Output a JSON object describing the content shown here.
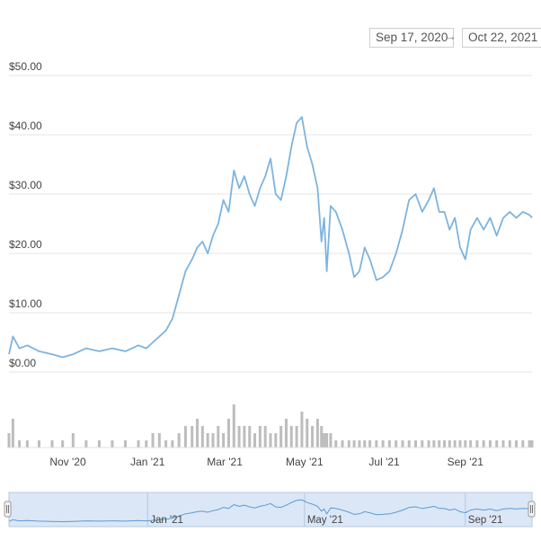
{
  "date_range": {
    "from": "Sep 17, 2020",
    "arrow": "→",
    "to": "Oct 22, 2021"
  },
  "colors": {
    "line": "#7cb4e0",
    "grid": "#e6e6e6",
    "volume": "#bdbdbd",
    "navigator_fill": "#dbe7f6",
    "navigator_line": "#5b9bd5"
  },
  "chart_data": {
    "type": "line",
    "title": "",
    "xlabel": "",
    "ylabel": "",
    "x_range": [
      "2020-09-17",
      "2021-10-22"
    ],
    "ylim": [
      0,
      50
    ],
    "y_ticks": [
      "$0.00",
      "$10.00",
      "$20.00",
      "$30.00",
      "$40.00",
      "$50.00"
    ],
    "y_tick_values": [
      0,
      10,
      20,
      30,
      40,
      50
    ],
    "x_ticks": [
      {
        "label": "Nov '20",
        "date": "2020-11-01"
      },
      {
        "label": "Jan '21",
        "date": "2021-01-01"
      },
      {
        "label": "Mar '21",
        "date": "2021-03-01"
      },
      {
        "label": "May '21",
        "date": "2021-05-01"
      },
      {
        "label": "Jul '21",
        "date": "2021-07-01"
      },
      {
        "label": "Sep '21",
        "date": "2021-09-01"
      }
    ],
    "navigator_ticks": [
      {
        "label": "Jan '21",
        "date": "2021-01-01"
      },
      {
        "label": "May '21",
        "date": "2021-05-01"
      },
      {
        "label": "Sep '21",
        "date": "2021-09-01"
      }
    ],
    "grid": true,
    "legend": "none",
    "series": [
      {
        "x": [
          "2020-09-17",
          "2020-09-20",
          "2020-09-25",
          "2020-10-01",
          "2020-10-10",
          "2020-10-20",
          "2020-10-28",
          "2020-11-05",
          "2020-11-15",
          "2020-11-25",
          "2020-12-05",
          "2020-12-15",
          "2020-12-25",
          "2020-12-31",
          "2021-01-05",
          "2021-01-10",
          "2021-01-15",
          "2021-01-20",
          "2021-01-25",
          "2021-01-30",
          "2021-02-04",
          "2021-02-08",
          "2021-02-12",
          "2021-02-16",
          "2021-02-20",
          "2021-02-24",
          "2021-02-28",
          "2021-03-04",
          "2021-03-08",
          "2021-03-12",
          "2021-03-16",
          "2021-03-20",
          "2021-03-24",
          "2021-03-28",
          "2021-04-01",
          "2021-04-05",
          "2021-04-09",
          "2021-04-13",
          "2021-04-17",
          "2021-04-21",
          "2021-04-25",
          "2021-04-29",
          "2021-05-03",
          "2021-05-07",
          "2021-05-11",
          "2021-05-14",
          "2021-05-16",
          "2021-05-18",
          "2021-05-21",
          "2021-05-25",
          "2021-05-30",
          "2021-06-04",
          "2021-06-08",
          "2021-06-12",
          "2021-06-16",
          "2021-06-20",
          "2021-06-25",
          "2021-06-30",
          "2021-07-05",
          "2021-07-10",
          "2021-07-15",
          "2021-07-20",
          "2021-07-25",
          "2021-07-30",
          "2021-08-04",
          "2021-08-08",
          "2021-08-12",
          "2021-08-16",
          "2021-08-20",
          "2021-08-24",
          "2021-08-28",
          "2021-09-01",
          "2021-09-05",
          "2021-09-10",
          "2021-09-15",
          "2021-09-20",
          "2021-09-25",
          "2021-09-30",
          "2021-10-05",
          "2021-10-10",
          "2021-10-15",
          "2021-10-20",
          "2021-10-22"
        ],
        "y": [
          3.0,
          6.0,
          4.0,
          4.5,
          3.5,
          3.0,
          2.5,
          3.0,
          4.0,
          3.5,
          4.0,
          3.5,
          4.5,
          4.0,
          5.0,
          6.0,
          7.0,
          9.0,
          13.0,
          17.0,
          19.0,
          21.0,
          22.0,
          20.0,
          23.0,
          25.0,
          29.0,
          27.0,
          34.0,
          31.0,
          33.0,
          30.0,
          28.0,
          31.0,
          33.0,
          36.0,
          30.0,
          29.0,
          33.0,
          38.0,
          42.0,
          43.0,
          38.0,
          35.0,
          31.0,
          22.0,
          26.0,
          17.0,
          28.0,
          27.0,
          24.0,
          20.0,
          16.0,
          17.0,
          21.0,
          19.0,
          15.5,
          16.0,
          17.0,
          20.0,
          24.0,
          29.0,
          30.0,
          27.0,
          29.0,
          31.0,
          27.0,
          27.0,
          24.0,
          26.0,
          21.0,
          19.0,
          24.0,
          26.0,
          24.0,
          26.0,
          23.0,
          26.0,
          27.0,
          26.0,
          27.0,
          26.5,
          26.0
        ]
      }
    ],
    "volume": [
      2,
      4,
      1,
      1,
      1,
      1,
      1,
      2,
      1,
      1,
      1,
      1,
      1,
      1,
      2,
      2,
      1,
      1,
      2,
      3,
      3,
      4,
      3,
      2,
      2,
      3,
      2,
      4,
      6,
      3,
      3,
      3,
      2,
      3,
      3,
      2,
      2,
      3,
      4,
      3,
      3,
      5,
      4,
      3,
      4,
      3,
      2,
      2,
      2,
      1,
      1,
      1,
      1,
      1,
      1,
      1,
      1,
      1,
      1,
      1,
      1,
      1,
      1,
      1,
      1,
      1,
      1,
      1,
      1,
      1,
      1,
      1,
      1,
      1,
      1,
      1,
      1,
      1,
      1,
      1,
      1,
      1,
      1
    ]
  }
}
